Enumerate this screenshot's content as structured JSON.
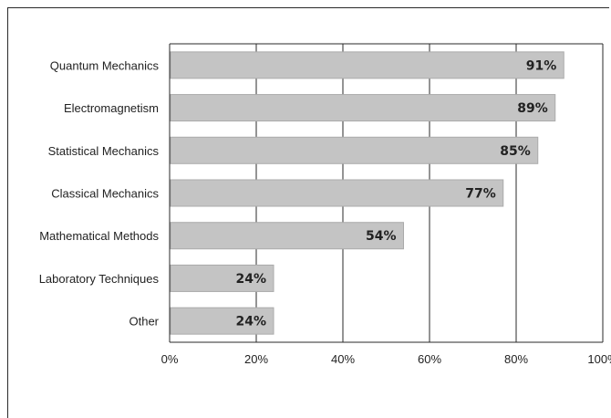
{
  "chart_data": {
    "type": "bar",
    "orientation": "horizontal",
    "categories": [
      "Quantum Mechanics",
      "Electromagnetism",
      "Statistical Mechanics",
      "Classical Mechanics",
      "Mathematical Methods",
      "Laboratory Techniques",
      "Other"
    ],
    "values": [
      91,
      89,
      85,
      77,
      54,
      24,
      24
    ],
    "value_labels": [
      "91%",
      "89%",
      "85%",
      "77%",
      "54%",
      "24%",
      "24%"
    ],
    "x_ticks": [
      "0%",
      "20%",
      "40%",
      "60%",
      "80%",
      "100%"
    ],
    "xlim": [
      0,
      100
    ],
    "grid": "vertical",
    "colors": {
      "bar": "#c4c4c4",
      "bar_edge": "#ababab",
      "axis": "#2a2a2a"
    }
  }
}
